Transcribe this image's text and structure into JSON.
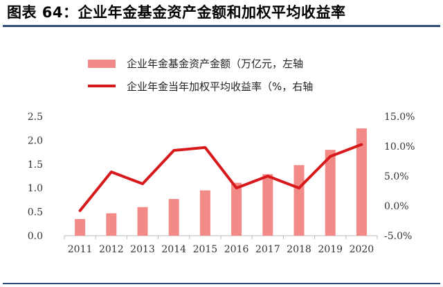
{
  "title": "图表 64：企业年金基金资产金额和加权平均收益率",
  "colors": {
    "bar": "#f28b87",
    "line": "#d7191c",
    "rule": "#2a4a7a",
    "axis": "#bbbbbb"
  },
  "chart_data": {
    "type": "bar",
    "categories": [
      "2011",
      "2012",
      "2013",
      "2014",
      "2015",
      "2016",
      "2017",
      "2018",
      "2019",
      "2020"
    ],
    "series": [
      {
        "name": "企业年金基金资产金额（万亿元，左轴",
        "type": "bar",
        "axis": "left",
        "values": [
          0.35,
          0.47,
          0.6,
          0.77,
          0.95,
          1.11,
          1.29,
          1.48,
          1.8,
          2.25
        ]
      },
      {
        "name": "企业年金当年加权平均收益率（%，右轴",
        "type": "line",
        "axis": "right",
        "values": [
          -0.8,
          5.7,
          3.7,
          9.3,
          9.8,
          3.0,
          5.0,
          3.0,
          8.3,
          10.3
        ]
      }
    ],
    "left_axis": {
      "ylim": [
        0.0,
        2.5
      ],
      "ticks": [
        "0.0",
        "0.5",
        "1.0",
        "1.5",
        "2.0",
        "2.5"
      ]
    },
    "right_axis": {
      "ylim": [
        -5.0,
        15.0
      ],
      "ticks": [
        "-5.0%",
        "0.0%",
        "5.0%",
        "10.0%",
        "15.0%"
      ]
    },
    "legend_position": "top-center",
    "grid": false
  }
}
